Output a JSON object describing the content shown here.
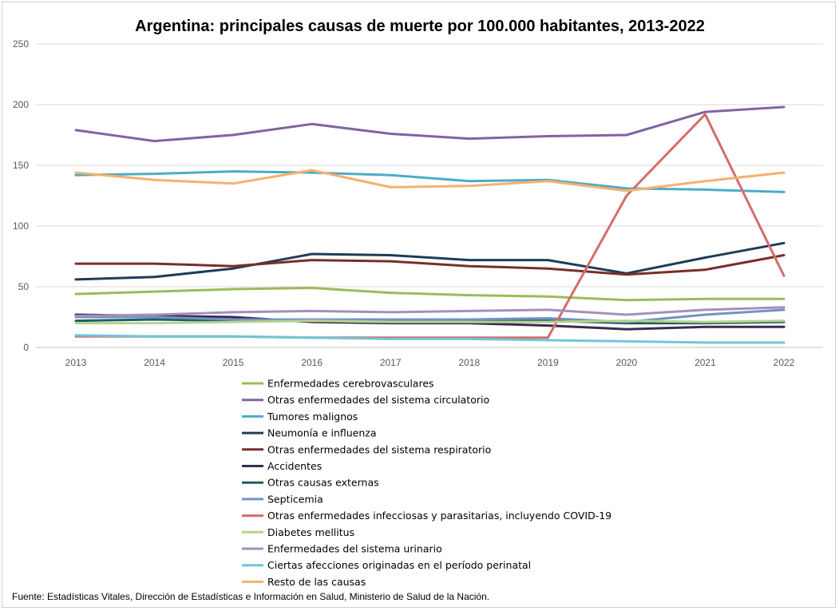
{
  "chart_data": {
    "type": "line",
    "title": "Argentina: principales causas de muerte por 100.000 habitantes, 2013-2022",
    "xlabel": "",
    "ylabel": "",
    "ylim": [
      0,
      250
    ],
    "yticks": [
      0,
      50,
      100,
      150,
      200,
      250
    ],
    "grid": true,
    "legend_position": "bottom",
    "x": [
      "2013",
      "2014",
      "2015",
      "2016",
      "2017",
      "2018",
      "2019",
      "2020",
      "2021",
      "2022"
    ],
    "series": [
      {
        "name": "Enfermedades cerebrovasculares",
        "color": "#9bbb59",
        "values": [
          44,
          46,
          48,
          49,
          45,
          43,
          42,
          39,
          40,
          40
        ]
      },
      {
        "name": "Otras enfermedades del sistema circulatorio",
        "color": "#8064a2",
        "values": [
          179,
          170,
          175,
          184,
          176,
          172,
          174,
          175,
          194,
          198
        ]
      },
      {
        "name": "Tumores malignos",
        "color": "#4bacc6",
        "values": [
          142,
          143,
          145,
          144,
          142,
          137,
          138,
          131,
          130,
          128
        ]
      },
      {
        "name": "Neumonía e influenza",
        "color": "#1f3c57",
        "values": [
          56,
          58,
          65,
          77,
          76,
          72,
          72,
          61,
          74,
          86
        ]
      },
      {
        "name": "Otras enfermedades del sistema respiratorio",
        "color": "#7a2e2b",
        "values": [
          69,
          69,
          67,
          72,
          71,
          67,
          65,
          60,
          64,
          76
        ]
      },
      {
        "name": "Accidentes",
        "color": "#3d2a50",
        "values": [
          27,
          26,
          25,
          21,
          20,
          20,
          18,
          15,
          17,
          17
        ]
      },
      {
        "name": "Otras causas externas",
        "color": "#1e5f64",
        "values": [
          22,
          23,
          22,
          22,
          22,
          22,
          22,
          20,
          20,
          21
        ]
      },
      {
        "name": "Septicemia",
        "color": "#7094bf",
        "values": [
          25,
          25,
          23,
          23,
          23,
          23,
          24,
          21,
          27,
          31
        ]
      },
      {
        "name": "Otras enfermedades infecciosas y parasitarias, incluyendo COVID-19",
        "color": "#d36d6d",
        "values": [
          9,
          9,
          9,
          8,
          8,
          8,
          8,
          125,
          192,
          59
        ]
      },
      {
        "name": "Diabetes mellitus",
        "color": "#b6d28e",
        "values": [
          20,
          20,
          21,
          22,
          21,
          21,
          21,
          22,
          21,
          22
        ]
      },
      {
        "name": "Enfermedades del sistema urinario",
        "color": "#a48fbf",
        "values": [
          26,
          27,
          29,
          30,
          29,
          30,
          31,
          27,
          31,
          33
        ]
      },
      {
        "name": "Ciertas afecciones originadas en el período perinatal",
        "color": "#6ec7d7",
        "values": [
          10,
          9,
          9,
          8,
          7,
          7,
          6,
          5,
          4,
          4
        ]
      },
      {
        "name": "Resto de las causas",
        "color": "#f7b06e",
        "values": [
          144,
          138,
          135,
          146,
          132,
          133,
          137,
          129,
          137,
          144
        ]
      }
    ],
    "source": "Fuente: Estadísticas Vitales, Dirección de Estadísticas e Información en Salud, Ministerio de Salud de la Nación."
  }
}
